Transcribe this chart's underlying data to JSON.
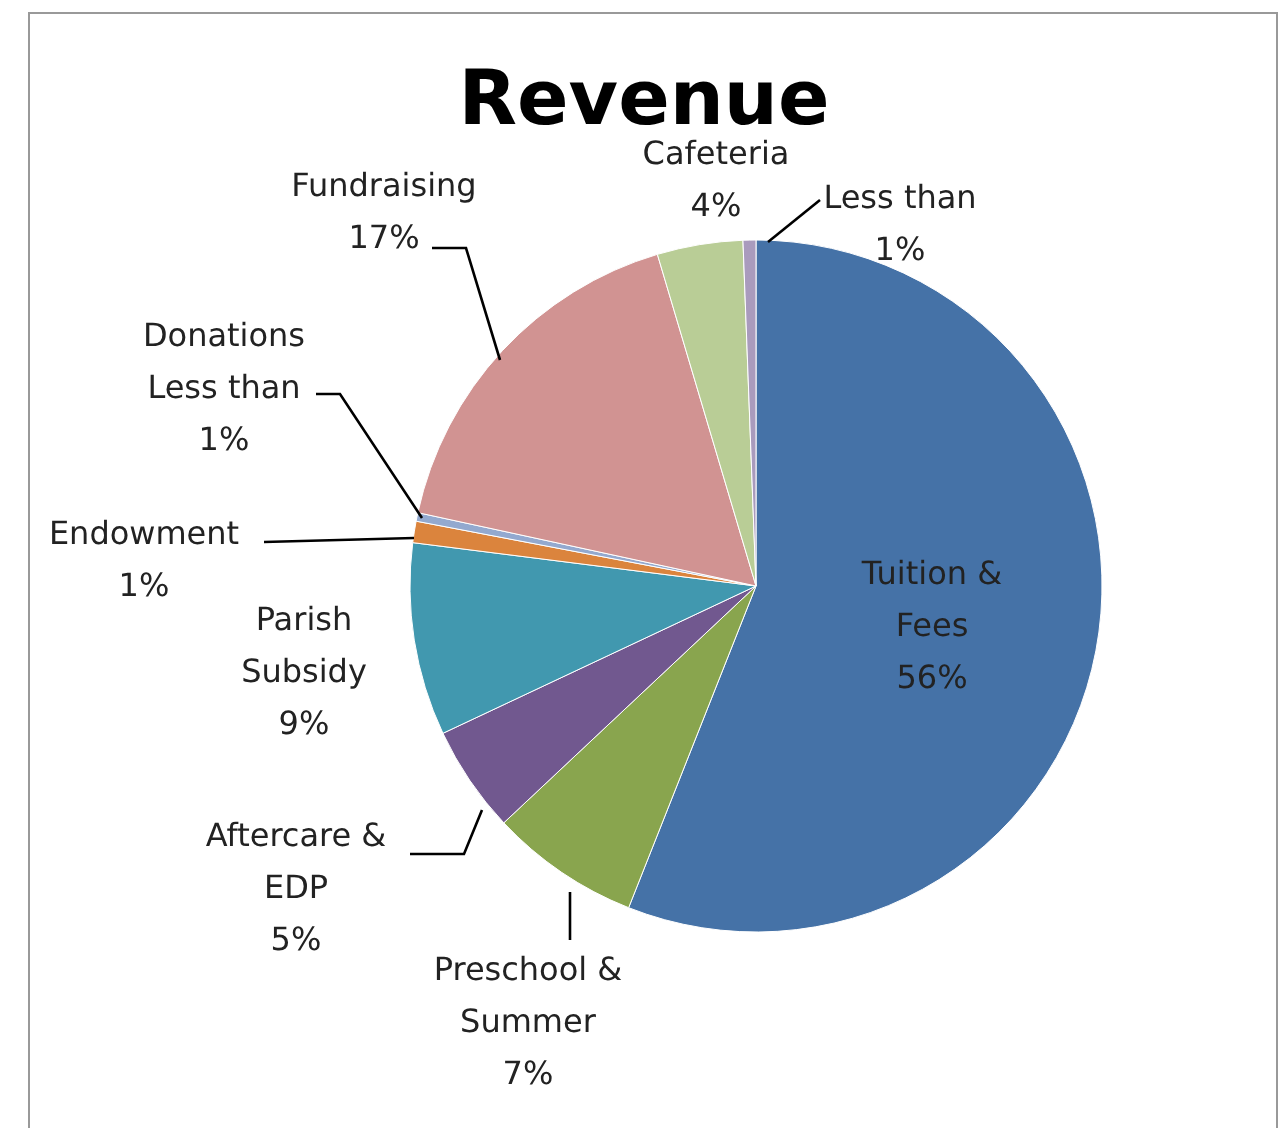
{
  "chart_data": {
    "type": "pie",
    "title": "Revenue",
    "categories": [
      "Tuition & Fees",
      "Preschool & Summer",
      "Aftercare & EDP",
      "Parish Subsidy",
      "Endowment",
      "Donations",
      "Fundraising",
      "Cafeteria",
      null
    ],
    "values": [
      56,
      7,
      5,
      9,
      1,
      0.4,
      17,
      4,
      0.6
    ],
    "value_labels": [
      "56%",
      "7%",
      "5%",
      "9%",
      "1%",
      "Less than 1%",
      "17%",
      "4%",
      "Less than 1%"
    ],
    "colors": [
      "#4572a7",
      "#89a54e",
      "#71588f",
      "#4198af",
      "#db843d",
      "#93a9cf",
      "#d19392",
      "#b9cd96",
      "#a99bbd"
    ],
    "legend": false
  }
}
